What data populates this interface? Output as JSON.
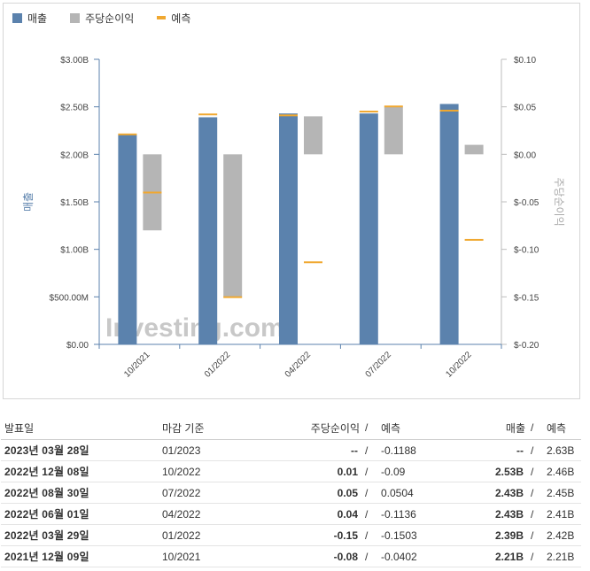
{
  "legend": {
    "revenue": "매출",
    "eps": "주당순이익",
    "forecast": "예측"
  },
  "colors": {
    "revenue": "#5b82ad",
    "eps": "#b5b5b5",
    "forecast": "#f0a830",
    "red": "#d4021d",
    "blue": "#0a8ed9",
    "axis_left": "#5b82ad",
    "axis_right": "#bdbdbd"
  },
  "watermark": "Investing.com",
  "chart_data": {
    "type": "bar",
    "categories": [
      "10/2021",
      "01/2022",
      "04/2022",
      "07/2022",
      "10/2022"
    ],
    "left_axis": {
      "label": "매출",
      "ticks": [
        "$3.00B",
        "$2.50B",
        "$2.00B",
        "$1.50B",
        "$1.00B",
        "$500.00M",
        "$0.00"
      ],
      "ylim": [
        0,
        3.0
      ]
    },
    "right_axis": {
      "label": "주당순이익",
      "ticks": [
        "$0.10",
        "$0.05",
        "$0.00",
        "$-0.05",
        "$-0.10",
        "$-0.15",
        "$-0.20"
      ],
      "ylim": [
        -0.2,
        0.1
      ]
    },
    "series": [
      {
        "name": "매출",
        "axis": "left",
        "values": [
          2.21,
          2.39,
          2.43,
          2.43,
          2.53
        ]
      },
      {
        "name": "주당순이익",
        "axis": "right",
        "values": [
          -0.08,
          -0.15,
          0.04,
          0.05,
          0.01
        ]
      },
      {
        "name": "매출 예측",
        "axis": "left",
        "values": [
          2.21,
          2.42,
          2.41,
          2.45,
          2.46
        ]
      },
      {
        "name": "주당순이익 예측",
        "axis": "right",
        "values": [
          -0.0402,
          -0.1503,
          -0.1136,
          0.0504,
          -0.09
        ]
      }
    ]
  },
  "table": {
    "headers": {
      "date": "발표일",
      "period": "마감 기준",
      "eps": "주당순이익",
      "sep": "/",
      "eps_fc": "예측",
      "rev": "매출",
      "rev_fc": "예측"
    },
    "rows": [
      {
        "date": "2023년 03월 28일",
        "period": "01/2023",
        "eps": "--",
        "eps_color": "neutral",
        "eps_fc": "-0.1188",
        "rev": "--",
        "rev_color": "neutral",
        "rev_fc": "2.63B"
      },
      {
        "date": "2022년 12월 08일",
        "period": "10/2022",
        "eps": "0.01",
        "eps_color": "pos-red",
        "eps_fc": "-0.09",
        "rev": "2.53B",
        "rev_color": "pos-red",
        "rev_fc": "2.46B"
      },
      {
        "date": "2022년 08월 30일",
        "period": "07/2022",
        "eps": "0.05",
        "eps_color": "pos-blue",
        "eps_fc": "0.0504",
        "rev": "2.43B",
        "rev_color": "pos-blue",
        "rev_fc": "2.45B"
      },
      {
        "date": "2022년 06월 01일",
        "period": "04/2022",
        "eps": "0.04",
        "eps_color": "pos-red",
        "eps_fc": "-0.1136",
        "rev": "2.43B",
        "rev_color": "pos-red",
        "rev_fc": "2.41B"
      },
      {
        "date": "2022년 03월 29일",
        "period": "01/2022",
        "eps": "-0.15",
        "eps_color": "pos-red",
        "eps_fc": "-0.1503",
        "rev": "2.39B",
        "rev_color": "pos-blue",
        "rev_fc": "2.42B"
      },
      {
        "date": "2021년 12월 09일",
        "period": "10/2021",
        "eps": "-0.08",
        "eps_color": "pos-blue",
        "eps_fc": "-0.0402",
        "rev": "2.21B",
        "rev_color": "neutral",
        "rev_fc": "2.21B"
      }
    ]
  }
}
